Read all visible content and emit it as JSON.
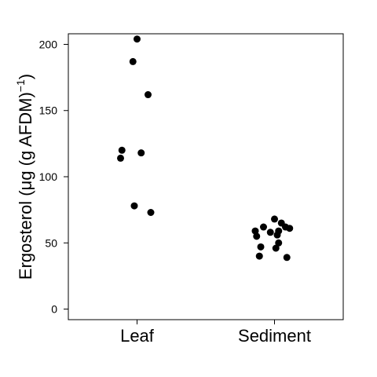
{
  "chart_data": {
    "type": "scatter",
    "title": "",
    "xlabel": "",
    "ylabel": {
      "prefix": "Ergosterol (",
      "mu": "μ",
      "middle": "g (g AFDM)",
      "sup": "−1",
      "suffix": ")"
    },
    "categories": [
      "Leaf",
      "Sediment"
    ],
    "ylim": [
      -8,
      208
    ],
    "yticks": [
      0,
      50,
      100,
      150,
      200
    ],
    "ytick_labels": [
      "0",
      "50",
      "100",
      "150",
      "200"
    ],
    "grid": false,
    "legend": "none",
    "marker_color": "#000000",
    "series": [
      {
        "category": "Leaf",
        "points": [
          {
            "x": 1.0,
            "y": 204
          },
          {
            "x": 0.97,
            "y": 187
          },
          {
            "x": 1.08,
            "y": 162
          },
          {
            "x": 0.89,
            "y": 120
          },
          {
            "x": 1.03,
            "y": 118
          },
          {
            "x": 0.88,
            "y": 114
          },
          {
            "x": 0.98,
            "y": 78
          },
          {
            "x": 1.1,
            "y": 73
          }
        ]
      },
      {
        "category": "Sediment",
        "points": [
          {
            "x": 2.0,
            "y": 68
          },
          {
            "x": 2.05,
            "y": 65
          },
          {
            "x": 2.08,
            "y": 62
          },
          {
            "x": 1.92,
            "y": 62
          },
          {
            "x": 2.11,
            "y": 61
          },
          {
            "x": 2.03,
            "y": 59
          },
          {
            "x": 1.86,
            "y": 59
          },
          {
            "x": 1.97,
            "y": 58
          },
          {
            "x": 2.02,
            "y": 56
          },
          {
            "x": 1.87,
            "y": 55
          },
          {
            "x": 2.03,
            "y": 50
          },
          {
            "x": 1.9,
            "y": 47
          },
          {
            "x": 2.01,
            "y": 46
          },
          {
            "x": 1.89,
            "y": 40
          },
          {
            "x": 2.09,
            "y": 39
          }
        ]
      }
    ]
  }
}
